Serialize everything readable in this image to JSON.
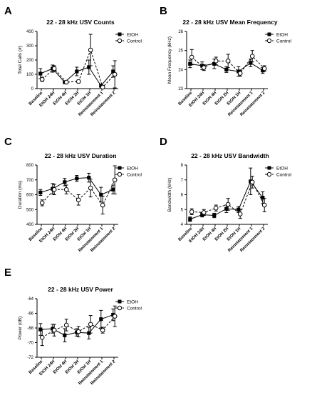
{
  "chart_data": [
    {
      "panel": "A",
      "type": "line",
      "title": "22 - 28 kHz USV Counts",
      "xlabel": "",
      "ylabel": "Total Calls (#)",
      "ylim": [
        0,
        400
      ],
      "yticks": [
        0,
        100,
        200,
        300,
        400
      ],
      "categories": [
        "Baseline",
        "EtOH 24H",
        "EtOH 4H",
        "EtOH 2H",
        "EtOH 1H",
        "Reinstatement 1",
        "Reinstatement 2"
      ],
      "series": [
        {
          "name": "EtOH",
          "marker": "square-filled",
          "line": "solid",
          "values": [
            105,
            140,
            45,
            120,
            150,
            20,
            120
          ],
          "error": [
            35,
            25,
            8,
            30,
            50,
            10,
            40
          ]
        },
        {
          "name": "Control",
          "marker": "circle-open",
          "line": "dashed",
          "values": [
            65,
            140,
            45,
            50,
            270,
            10,
            100
          ],
          "error": [
            15,
            20,
            8,
            10,
            110,
            5,
            95
          ]
        }
      ]
    },
    {
      "panel": "B",
      "type": "line",
      "title": "22 - 28 kHz USV Mean Frequency",
      "xlabel": "",
      "ylabel": "Mean Frequency (kHz)",
      "ylim": [
        23,
        26
      ],
      "yticks": [
        23,
        24,
        25,
        26
      ],
      "categories": [
        "Baseline",
        "EtOH 24H",
        "EtOH 4H",
        "EtOH 2H",
        "EtOH 1H",
        "Reinstatement 1",
        "Reinstatement 2"
      ],
      "series": [
        {
          "name": "EtOH",
          "marker": "square-filled",
          "line": "solid",
          "values": [
            24.3,
            24.2,
            24.3,
            24.0,
            23.9,
            24.35,
            23.95
          ],
          "error": [
            0.2,
            0.2,
            0.25,
            0.15,
            0.25,
            0.2,
            0.15
          ]
        },
        {
          "name": "Control",
          "marker": "circle-open",
          "line": "dashed",
          "values": [
            24.65,
            24.1,
            24.45,
            24.45,
            23.8,
            24.7,
            24.05
          ],
          "error": [
            0.4,
            0.15,
            0.2,
            0.35,
            0.15,
            0.3,
            0.15
          ]
        }
      ]
    },
    {
      "panel": "C",
      "type": "line",
      "title": "22 - 28 kHz USV Duration",
      "xlabel": "",
      "ylabel": "Duration (ms)",
      "ylim": [
        400,
        800
      ],
      "yticks": [
        400,
        500,
        600,
        700,
        800
      ],
      "categories": [
        "Baseline",
        "EtOH 24H",
        "EtOH 4H",
        "EtOH 2H",
        "EtOH 1H",
        "Reinstatement 1",
        "Reinstatement 2"
      ],
      "series": [
        {
          "name": "EtOH",
          "marker": "square-filled",
          "line": "solid",
          "values": [
            615,
            640,
            685,
            710,
            715,
            600,
            635
          ],
          "error": [
            20,
            35,
            25,
            20,
            30,
            50,
            30
          ]
        },
        {
          "name": "Control",
          "marker": "circle-open",
          "line": "dashed",
          "values": [
            545,
            635,
            635,
            565,
            645,
            530,
            700
          ],
          "error": [
            20,
            35,
            30,
            35,
            60,
            60,
            95
          ]
        }
      ]
    },
    {
      "panel": "D",
      "type": "line",
      "title": "22 - 28 kHz USV Bandwidth",
      "xlabel": "",
      "ylabel": "Bandwidth (kHz)",
      "ylim": [
        4,
        8
      ],
      "yticks": [
        4,
        5,
        6,
        7,
        8
      ],
      "categories": [
        "Baseline",
        "EtOH 24H",
        "EtOH 4H",
        "EtOH 2H",
        "EtOH 1H",
        "Reinstatement 1",
        "Reinstatement 2"
      ],
      "series": [
        {
          "name": "EtOH",
          "marker": "square-filled",
          "line": "solid",
          "values": [
            4.35,
            4.65,
            4.6,
            5.05,
            5.0,
            6.9,
            5.8
          ],
          "error": [
            0.15,
            0.15,
            0.15,
            0.25,
            0.2,
            0.9,
            0.4
          ]
        },
        {
          "name": "Control",
          "marker": "circle-open",
          "line": "dashed",
          "values": [
            4.85,
            4.8,
            5.1,
            5.35,
            4.7,
            6.85,
            5.3
          ],
          "error": [
            0.2,
            0.2,
            0.2,
            0.4,
            0.3,
            0.4,
            0.45
          ]
        }
      ]
    },
    {
      "panel": "E",
      "type": "line",
      "title": "22 - 28 kHz USV Power",
      "xlabel": "",
      "ylabel": "Power (dB)",
      "ylim": [
        -72,
        -64
      ],
      "yticks": [
        -72,
        -70,
        -68,
        -66,
        -64
      ],
      "categories": [
        "Baseline",
        "EtOH 24H",
        "EtOH 4H",
        "EtOH 2H",
        "EtOH 1H",
        "Reinstatement 1",
        "Reinstatement 2"
      ],
      "series": [
        {
          "name": "EtOH",
          "marker": "square-filled",
          "line": "solid",
          "values": [
            -68.2,
            -68.1,
            -69.0,
            -68.6,
            -68.7,
            -66.8,
            -66.2
          ],
          "error": [
            0.8,
            0.6,
            0.9,
            0.5,
            0.8,
            1.2,
            0.8
          ]
        },
        {
          "name": "Control",
          "marker": "circle-open",
          "line": "dashed",
          "values": [
            -69.3,
            -68.3,
            -67.6,
            -68.5,
            -67.5,
            -68.3,
            -66.4
          ],
          "error": [
            1.1,
            0.8,
            0.8,
            0.7,
            1.2,
            0.4,
            1.4
          ]
        }
      ]
    }
  ]
}
